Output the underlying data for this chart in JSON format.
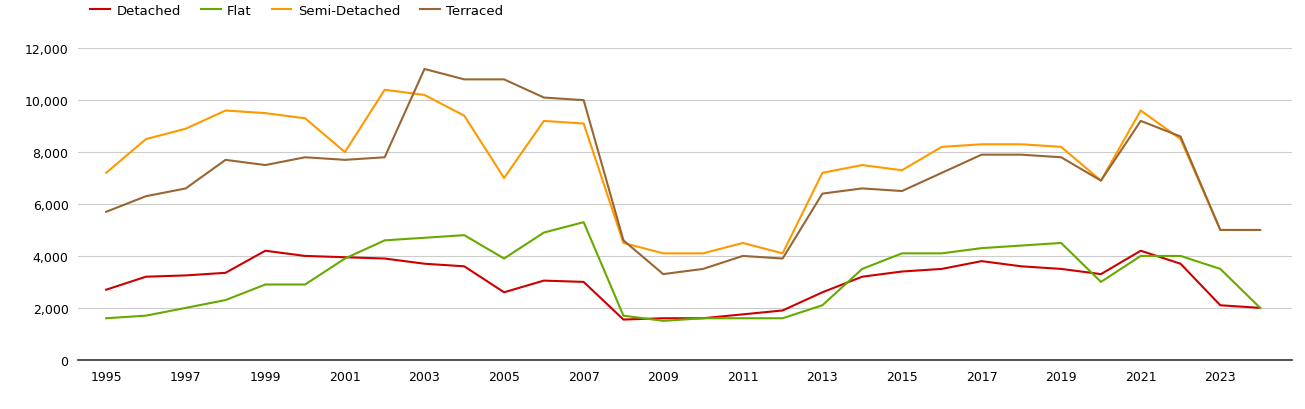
{
  "years": [
    1995,
    1996,
    1997,
    1998,
    1999,
    2000,
    2001,
    2002,
    2003,
    2004,
    2005,
    2006,
    2007,
    2008,
    2009,
    2010,
    2011,
    2012,
    2013,
    2014,
    2015,
    2016,
    2017,
    2018,
    2019,
    2020,
    2021,
    2022,
    2023,
    2024
  ],
  "detached": [
    2700,
    3200,
    3250,
    3350,
    4200,
    4000,
    3950,
    3900,
    3700,
    3600,
    2600,
    3050,
    3000,
    1550,
    1600,
    1600,
    1750,
    1900,
    2600,
    3200,
    3400,
    3500,
    3800,
    3600,
    3500,
    3300,
    4200,
    3700,
    2100,
    2000
  ],
  "flat": [
    1600,
    1700,
    2000,
    2300,
    2900,
    2900,
    3900,
    4600,
    4700,
    4800,
    3900,
    4900,
    5300,
    1700,
    1500,
    1600,
    1600,
    1600,
    2100,
    3500,
    4100,
    4100,
    4300,
    4400,
    4500,
    3000,
    4000,
    4000,
    3500,
    2000
  ],
  "semi_detached": [
    7200,
    8500,
    8900,
    9600,
    9500,
    9300,
    8000,
    10400,
    10200,
    9400,
    7000,
    9200,
    9100,
    4500,
    4100,
    4100,
    4500,
    4100,
    7200,
    7500,
    7300,
    8200,
    8300,
    8300,
    8200,
    6900,
    9600,
    8500,
    5000,
    5000
  ],
  "terraced": [
    5700,
    6300,
    6600,
    7700,
    7500,
    7800,
    7700,
    7800,
    11200,
    10800,
    10800,
    10100,
    10000,
    4600,
    3300,
    3500,
    4000,
    3900,
    6400,
    6600,
    6500,
    7200,
    7900,
    7900,
    7800,
    6900,
    9200,
    8600,
    5000,
    5000
  ],
  "colors": {
    "detached": "#cc0000",
    "flat": "#66aa00",
    "semi_detached": "#ff9900",
    "terraced": "#996633"
  },
  "ylim": [
    0,
    12000
  ],
  "yticks": [
    0,
    2000,
    4000,
    6000,
    8000,
    10000,
    12000
  ],
  "legend_labels": [
    "Detached",
    "Flat",
    "Semi-Detached",
    "Terraced"
  ],
  "background_color": "#ffffff",
  "grid_color": "#cccccc"
}
